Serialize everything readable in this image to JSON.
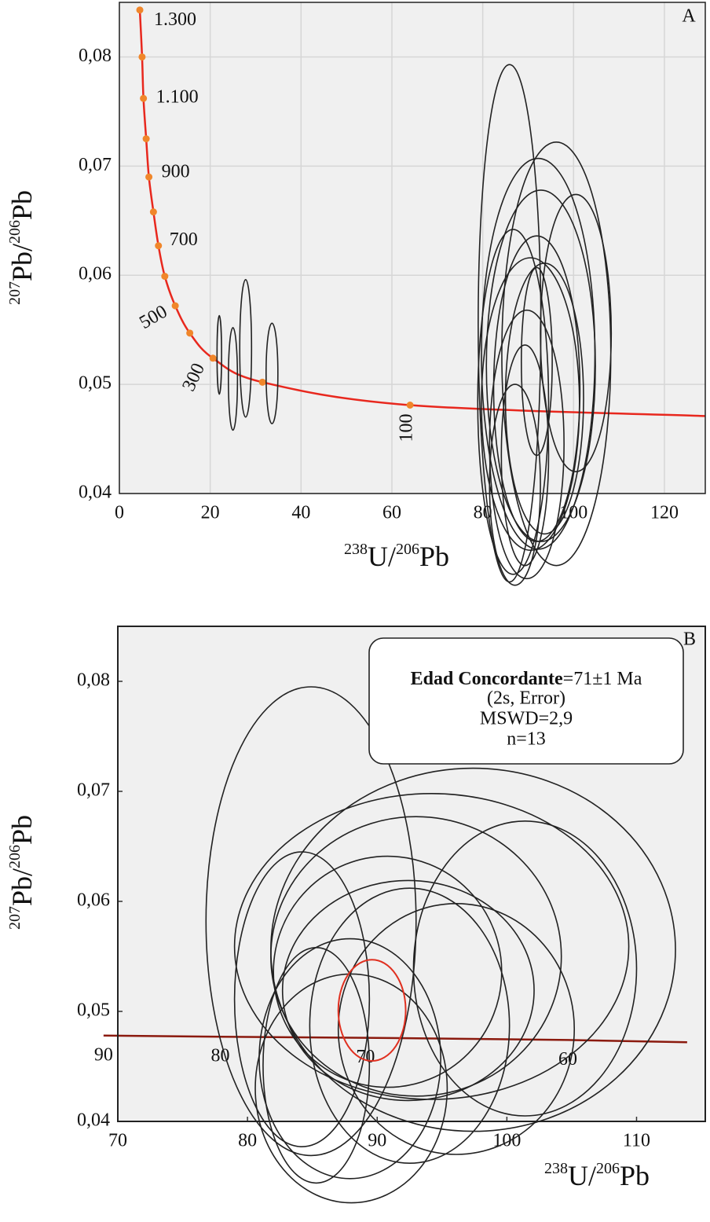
{
  "chart_data": [
    {
      "type": "concordia",
      "panel": "A",
      "x_label": [
        "238",
        "U/",
        "206",
        "Pb"
      ],
      "y_label": [
        "207",
        "Pb/",
        "206",
        "Pb"
      ],
      "xlim": [
        0,
        129
      ],
      "ylim": [
        0.04,
        0.085
      ],
      "xticks": [
        0,
        20,
        40,
        60,
        80,
        100,
        120
      ],
      "yticks": [
        {
          "value": 0.04,
          "label": "0,04"
        },
        {
          "value": 0.05,
          "label": "0,05"
        },
        {
          "value": 0.06,
          "label": "0,06"
        },
        {
          "value": 0.07,
          "label": "0,07"
        },
        {
          "value": 0.08,
          "label": "0,08"
        }
      ],
      "grid": true,
      "background": "#f0f0f0",
      "concordia": {
        "color": "#e8281e",
        "marker_color": "#f0862a",
        "x": [
          4.5,
          5,
          5.3,
          5.9,
          6.5,
          7.5,
          8.6,
          10,
          12.3,
          15.5,
          20.6,
          31.5,
          64
        ],
        "y": [
          0.0843,
          0.08,
          0.0762,
          0.0725,
          0.069,
          0.0658,
          0.0627,
          0.0599,
          0.0572,
          0.0547,
          0.0524,
          0.0502,
          0.0481
        ],
        "labels": [
          "1.300",
          null,
          "1.100",
          null,
          "900",
          null,
          "700",
          null,
          "500",
          null,
          "300",
          null,
          "100"
        ],
        "end": [
          129,
          0.0471
        ]
      },
      "ellipses": {
        "color": "#222222",
        "x": [
          22,
          25,
          27.8,
          33.6,
          85.9,
          96.2,
          92.2,
          92.8,
          100.5,
          86.7,
          90.5,
          93.6,
          89.7,
          89.3,
          87.1,
          91.9,
          91.9
        ],
        "y": [
          0.0527,
          0.0505,
          0.0533,
          0.051,
          0.0556,
          0.0528,
          0.0528,
          0.0517,
          0.0547,
          0.0484,
          0.0482,
          0.0487,
          0.0445,
          0.0435,
          0.0408,
          0.0521,
          0.0496
        ],
        "sx": [
          0.5,
          1,
          1.3,
          1.3,
          6.9,
          12,
          12.5,
          12,
          7.8,
          7.8,
          10.8,
          8.6,
          8.2,
          5.2,
          5.6,
          3.4,
          9.5
        ],
        "sy": [
          0.0036,
          0.0047,
          0.0063,
          0.0046,
          0.0237,
          0.0194,
          0.0179,
          0.0161,
          0.0127,
          0.0158,
          0.0134,
          0.0124,
          0.0123,
          0.0101,
          0.0092,
          0.0086,
          0.014
        ]
      }
    },
    {
      "type": "concordia",
      "panel": "B",
      "x_label": [
        "238",
        "U/",
        "206",
        "Pb"
      ],
      "y_label": [
        "207",
        "Pb/",
        "206",
        "Pb"
      ],
      "xlim": [
        70,
        115.3
      ],
      "ylim": [
        0.04,
        0.085
      ],
      "xticks": [
        70,
        80,
        90,
        100,
        110
      ],
      "yticks": [
        {
          "value": 0.04,
          "label": "0,04"
        },
        {
          "value": 0.05,
          "label": "0,05"
        },
        {
          "value": 0.06,
          "label": "0,06"
        },
        {
          "value": 0.07,
          "label": "0,07"
        },
        {
          "value": 0.08,
          "label": "0,08"
        }
      ],
      "grid": false,
      "background": "#f0f0f0",
      "concordia": {
        "color": "#8b1a0e",
        "x": [
          68.9,
          77.9,
          89.1,
          104.7
        ],
        "y": [
          0.0478,
          0.0477,
          0.0476,
          0.0474
        ],
        "labels": [
          "90",
          "80",
          "70",
          "60"
        ],
        "end": [
          113.9,
          0.0472
        ]
      },
      "ellipses": {
        "color": "#222222",
        "x": [
          84.9,
          97.4,
          94.2,
          93,
          101.4,
          90.8,
          84.2,
          92.4,
          92.5,
          87.9,
          85.3,
          88,
          96.1
        ],
        "y": [
          0.0582,
          0.0556,
          0.0559,
          0.055,
          0.0539,
          0.0536,
          0.0511,
          0.0519,
          0.0487,
          0.0457,
          0.0451,
          0.043,
          0.0484
        ],
        "sx": [
          8.1,
          15.6,
          15.2,
          11.2,
          8.6,
          8.8,
          5.2,
          9.7,
          7.7,
          7,
          4.1,
          7.4,
          9.1
        ],
        "sy": [
          0.0213,
          0.0165,
          0.0139,
          0.0127,
          0.0134,
          0.0105,
          0.0134,
          0.01,
          0.0125,
          0.0109,
          0.0107,
          0.0104,
          0.0114
        ]
      },
      "concordant_ellipse": {
        "x": 89.6,
        "y": 0.0501,
        "sx": 2.6,
        "sy": 0.0046,
        "color": "#e03020"
      },
      "annotation": {
        "bold": "Edad Concordante",
        "lines": [
          "=71±1 Ma",
          "(2s, Error)",
          "MSWD=2,9",
          "n=13"
        ]
      }
    }
  ]
}
